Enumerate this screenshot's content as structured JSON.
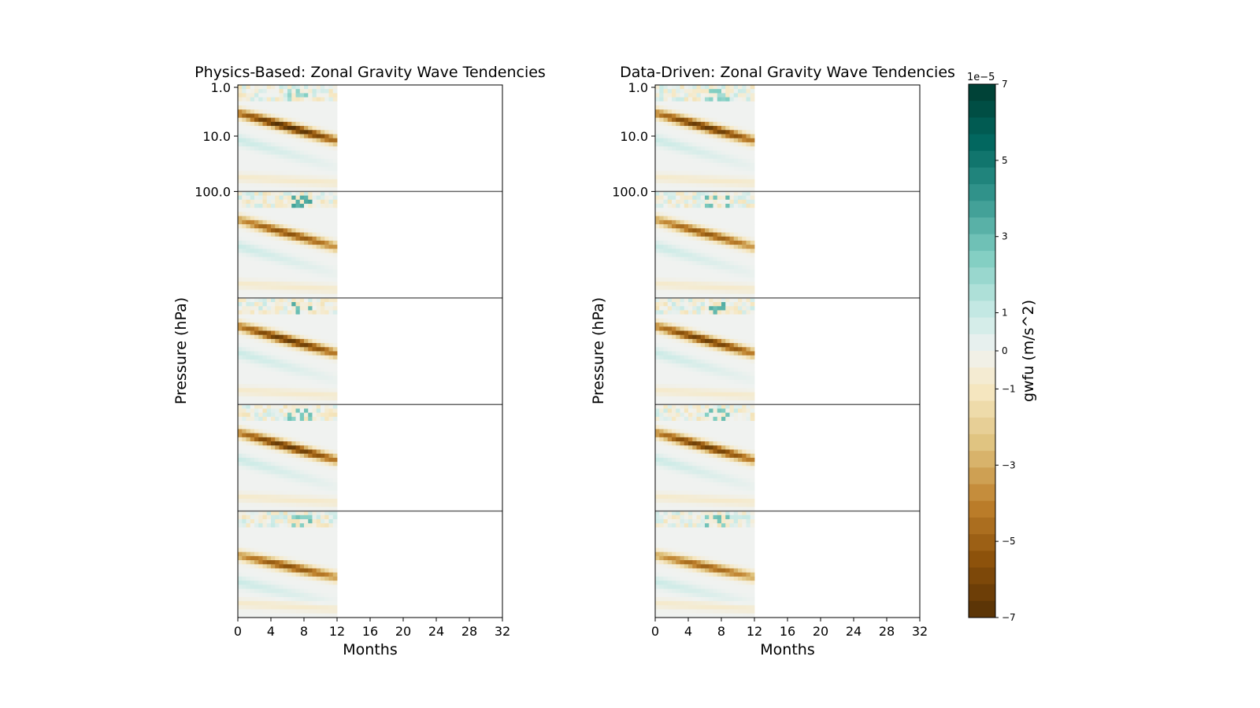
{
  "chart_data": [
    {
      "type": "heatmap",
      "title": "Physics-Based: Zonal Gravity Wave Tendencies",
      "xlabel": "Months",
      "ylabel": "Pressure (hPa)",
      "x_ticks": [
        0,
        4,
        8,
        12,
        16,
        20,
        24,
        28,
        32
      ],
      "xlim": [
        0,
        32
      ],
      "y_tick_labels": [
        "1.0",
        "10.0",
        "100.0"
      ],
      "y_scale": "log",
      "stacked_panels": 5,
      "data_extent_months": [
        0,
        12
      ],
      "panels": [
        {
          "bands": [
            {
              "kind": "easterly",
              "start_level": 0.25,
              "end_level": 0.5,
              "peak": -6.5
            }
          ],
          "upper_westerly": 1.5
        },
        {
          "bands": [
            {
              "kind": "easterly",
              "start_level": 0.25,
              "end_level": 0.5,
              "peak": -5.0
            }
          ],
          "upper_westerly": 3.0
        },
        {
          "bands": [
            {
              "kind": "easterly",
              "start_level": 0.25,
              "end_level": 0.5,
              "peak": -6.0
            }
          ],
          "upper_westerly": 2.5
        },
        {
          "bands": [
            {
              "kind": "easterly",
              "start_level": 0.25,
              "end_level": 0.5,
              "peak": -6.0
            }
          ],
          "upper_westerly": 2.0
        },
        {
          "bands": [
            {
              "kind": "easterly",
              "start_level": 0.4,
              "end_level": 0.6,
              "peak": -5.0
            }
          ],
          "upper_westerly": 2.0
        }
      ]
    },
    {
      "type": "heatmap",
      "title": "Data-Driven: Zonal Gravity Wave Tendencies",
      "xlabel": "Months",
      "ylabel": "Pressure (hPa)",
      "x_ticks": [
        0,
        4,
        8,
        12,
        16,
        20,
        24,
        28,
        32
      ],
      "xlim": [
        0,
        32
      ],
      "y_tick_labels": [
        "1.0",
        "10.0",
        "100.0"
      ],
      "y_scale": "log",
      "stacked_panels": 5,
      "data_extent_months": [
        0,
        12
      ],
      "panels": [
        {
          "bands": [
            {
              "kind": "easterly",
              "start_level": 0.25,
              "end_level": 0.5,
              "peak": -6.0
            }
          ],
          "upper_westerly": 1.5
        },
        {
          "bands": [
            {
              "kind": "easterly",
              "start_level": 0.25,
              "end_level": 0.5,
              "peak": -4.8
            }
          ],
          "upper_westerly": 2.5
        },
        {
          "bands": [
            {
              "kind": "easterly",
              "start_level": 0.25,
              "end_level": 0.5,
              "peak": -5.8
            }
          ],
          "upper_westerly": 2.5
        },
        {
          "bands": [
            {
              "kind": "easterly",
              "start_level": 0.25,
              "end_level": 0.5,
              "peak": -5.8
            }
          ],
          "upper_westerly": 2.0
        },
        {
          "bands": [
            {
              "kind": "easterly",
              "start_level": 0.4,
              "end_level": 0.6,
              "peak": -4.5
            }
          ],
          "upper_westerly": 2.0
        }
      ]
    }
  ],
  "colorbar": {
    "label": "gwfu (m/s^2)",
    "exponent_label": "1e−5",
    "tick_labels": [
      "7",
      "5",
      "3",
      "1",
      "0",
      "−1",
      "−3",
      "−5",
      "−7"
    ],
    "tick_values": [
      7,
      5,
      3,
      1,
      0,
      -1,
      -3,
      -5,
      -7
    ],
    "vmin": -7,
    "vmax": 7,
    "levels": 32,
    "colormap": "BrBG"
  }
}
